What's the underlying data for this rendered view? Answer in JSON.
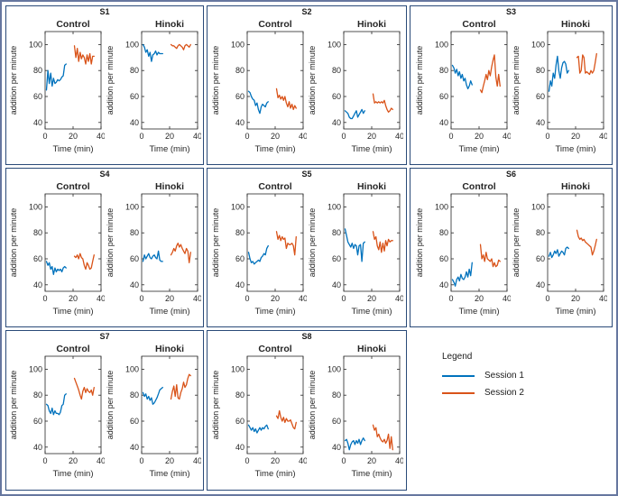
{
  "figure": {
    "outer_border_color": "#66779f",
    "panel_border_color": "#2a4a78",
    "background": "#ffffff"
  },
  "legend": {
    "title": "Legend",
    "items": [
      {
        "label": "Session 1",
        "color": "#0072BD"
      },
      {
        "label": "Session 2",
        "color": "#D95319"
      }
    ]
  },
  "axes_config": {
    "xlabel": "Time (min)",
    "ylabel": "addition per minute",
    "xlim": [
      0,
      40
    ],
    "ylim": [
      35,
      110
    ],
    "xticks": [
      0,
      20,
      40
    ],
    "yticks": [
      40,
      60,
      80,
      100
    ],
    "grid": false,
    "box": true,
    "session1_x": [
      1,
      2,
      3,
      4,
      5,
      6,
      7,
      8,
      9,
      10,
      11,
      12,
      13,
      14,
      15
    ],
    "session2_x": [
      21,
      22,
      23,
      24,
      25,
      26,
      27,
      28,
      29,
      30,
      31,
      32,
      33,
      34,
      35
    ],
    "series_colors": {
      "Session 1": "#0072BD",
      "Session 2": "#D95319"
    }
  },
  "chart_data": [
    {
      "type": "line",
      "subject": "S1",
      "subplots": [
        {
          "title": "Control",
          "series": [
            {
              "name": "Session 1",
              "y": [
                65,
                80,
                70,
                78,
                68,
                74,
                70,
                71,
                73,
                72,
                73,
                75,
                76,
                84,
                85
              ]
            },
            {
              "name": "Session 2",
              "y": [
                99,
                90,
                97,
                87,
                94,
                89,
                92,
                90,
                85,
                92,
                87,
                93,
                85,
                91,
                91
              ]
            }
          ]
        },
        {
          "title": "Hinoki",
          "series": [
            {
              "name": "Session 1",
              "y": [
                100,
                98,
                94,
                96,
                91,
                94,
                87,
                92,
                93,
                95,
                92,
                94,
                93,
                93,
                93
              ]
            },
            {
              "name": "Session 2",
              "y": [
                100,
                99,
                99,
                98,
                97,
                99,
                100,
                99,
                98,
                96,
                99,
                100,
                99,
                98,
                100
              ]
            }
          ]
        }
      ]
    },
    {
      "type": "line",
      "subject": "S2",
      "subplots": [
        {
          "title": "Control",
          "series": [
            {
              "name": "Session 1",
              "y": [
                64,
                63,
                60,
                58,
                57,
                53,
                55,
                50,
                47,
                52,
                54,
                53,
                52,
                55,
                56
              ]
            },
            {
              "name": "Session 2",
              "y": [
                66,
                59,
                61,
                58,
                60,
                57,
                60,
                55,
                52,
                56,
                51,
                54,
                50,
                53,
                51
              ]
            }
          ]
        },
        {
          "title": "Hinoki",
          "series": [
            {
              "name": "Session 1",
              "y": [
                49,
                48,
                47,
                44,
                43,
                43,
                45,
                47,
                49,
                44,
                46,
                48,
                50,
                47,
                49
              ]
            },
            {
              "name": "Session 2",
              "y": [
                62,
                55,
                56,
                55,
                56,
                55,
                56,
                55,
                57,
                53,
                50,
                48,
                49,
                51,
                50
              ]
            }
          ]
        }
      ]
    },
    {
      "type": "line",
      "subject": "S3",
      "subplots": [
        {
          "title": "Control",
          "series": [
            {
              "name": "Session 1",
              "y": [
                84,
                82,
                78,
                81,
                76,
                79,
                74,
                77,
                72,
                74,
                69,
                66,
                68,
                72,
                69
              ]
            },
            {
              "name": "Session 2",
              "y": [
                65,
                63,
                68,
                72,
                77,
                73,
                80,
                76,
                83,
                88,
                92,
                75,
                68,
                77,
                68
              ]
            }
          ]
        },
        {
          "title": "Hinoki",
          "series": [
            {
              "name": "Session 1",
              "y": [
                64,
                72,
                68,
                78,
                74,
                84,
                91,
                80,
                74,
                82,
                86,
                87,
                85,
                78,
                80
              ]
            },
            {
              "name": "Session 2",
              "y": [
                90,
                91,
                78,
                80,
                92,
                90,
                78,
                79,
                78,
                77,
                80,
                78,
                80,
                86,
                93
              ]
            }
          ]
        }
      ]
    },
    {
      "type": "line",
      "subject": "S4",
      "subplots": [
        {
          "title": "Control",
          "series": [
            {
              "name": "Session 1",
              "y": [
                58,
                55,
                57,
                52,
                54,
                48,
                53,
                50,
                52,
                51,
                52,
                50,
                53,
                54,
                53
              ]
            },
            {
              "name": "Session 2",
              "y": [
                62,
                61,
                63,
                60,
                64,
                61,
                60,
                55,
                52,
                57,
                55,
                52,
                53,
                58,
                63
              ]
            }
          ]
        },
        {
          "title": "Hinoki",
          "series": [
            {
              "name": "Session 1",
              "y": [
                58,
                63,
                60,
                62,
                64,
                61,
                60,
                62,
                63,
                61,
                60,
                66,
                59,
                58,
                58
              ]
            },
            {
              "name": "Session 2",
              "y": [
                63,
                65,
                68,
                66,
                70,
                72,
                69,
                71,
                68,
                66,
                64,
                68,
                66,
                57,
                65
              ]
            }
          ]
        }
      ]
    },
    {
      "type": "line",
      "subject": "S5",
      "subplots": [
        {
          "title": "Control",
          "series": [
            {
              "name": "Session 1",
              "y": [
                65,
                60,
                57,
                58,
                56,
                57,
                58,
                59,
                58,
                61,
                62,
                64,
                63,
                68,
                70
              ]
            },
            {
              "name": "Session 2",
              "y": [
                81,
                75,
                78,
                74,
                77,
                75,
                76,
                68,
                72,
                71,
                71,
                72,
                70,
                63,
                77
              ]
            }
          ]
        },
        {
          "title": "Hinoki",
          "series": [
            {
              "name": "Session 1",
              "y": [
                83,
                78,
                73,
                71,
                69,
                72,
                68,
                71,
                70,
                63,
                70,
                71,
                58,
                72,
                73
              ]
            },
            {
              "name": "Session 2",
              "y": [
                81,
                75,
                77,
                70,
                67,
                73,
                65,
                72,
                66,
                74,
                70,
                75,
                73,
                74,
                74
              ]
            }
          ]
        }
      ]
    },
    {
      "type": "line",
      "subject": "S6",
      "subplots": [
        {
          "title": "Control",
          "series": [
            {
              "name": "Session 1",
              "y": [
                44,
                42,
                39,
                44,
                46,
                43,
                48,
                45,
                44,
                46,
                50,
                46,
                52,
                47,
                57
              ]
            },
            {
              "name": "Session 2",
              "y": [
                71,
                60,
                63,
                58,
                65,
                60,
                59,
                58,
                60,
                54,
                57,
                54,
                55,
                59,
                58
              ]
            }
          ]
        },
        {
          "title": "Hinoki",
          "series": [
            {
              "name": "Session 1",
              "y": [
                62,
                65,
                61,
                63,
                66,
                64,
                67,
                62,
                64,
                66,
                65,
                63,
                68,
                69,
                68
              ]
            },
            {
              "name": "Session 2",
              "y": [
                82,
                77,
                75,
                76,
                74,
                75,
                73,
                72,
                71,
                70,
                69,
                63,
                66,
                70,
                75
              ]
            }
          ]
        }
      ]
    },
    {
      "type": "line",
      "subject": "S7",
      "subplots": [
        {
          "title": "Control",
          "series": [
            {
              "name": "Session 1",
              "y": [
                73,
                72,
                68,
                66,
                70,
                65,
                68,
                66,
                66,
                65,
                67,
                72,
                73,
                80,
                81
              ]
            },
            {
              "name": "Session 2",
              "y": [
                93,
                90,
                87,
                84,
                80,
                77,
                83,
                86,
                82,
                85,
                83,
                82,
                84,
                80,
                86
              ]
            }
          ]
        },
        {
          "title": "Hinoki",
          "series": [
            {
              "name": "Session 1",
              "y": [
                82,
                79,
                81,
                77,
                79,
                76,
                78,
                73,
                74,
                76,
                78,
                81,
                84,
                85,
                86
              ]
            },
            {
              "name": "Session 2",
              "y": [
                77,
                83,
                87,
                79,
                88,
                78,
                77,
                82,
                85,
                90,
                86,
                88,
                93,
                96,
                95
              ]
            }
          ]
        }
      ]
    },
    {
      "type": "line",
      "subject": "S8",
      "subplots": [
        {
          "title": "Control",
          "series": [
            {
              "name": "Session 1",
              "y": [
                57,
                55,
                53,
                55,
                52,
                54,
                51,
                53,
                55,
                53,
                55,
                54,
                56,
                57,
                54
              ]
            },
            {
              "name": "Session 2",
              "y": [
                64,
                62,
                68,
                63,
                60,
                63,
                59,
                62,
                60,
                60,
                61,
                58,
                55,
                54,
                59
              ]
            }
          ]
        },
        {
          "title": "Hinoki",
          "series": [
            {
              "name": "Session 1",
              "y": [
                45,
                46,
                43,
                38,
                42,
                44,
                45,
                42,
                45,
                43,
                46,
                42,
                45,
                47,
                45
              ]
            },
            {
              "name": "Session 2",
              "y": [
                57,
                53,
                55,
                48,
                50,
                47,
                45,
                44,
                46,
                43,
                45,
                50,
                39,
                48,
                38
              ]
            }
          ]
        }
      ]
    }
  ]
}
